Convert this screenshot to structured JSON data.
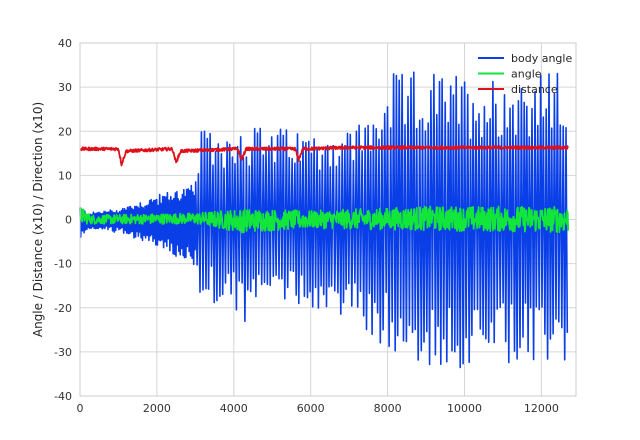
{
  "chart_data": {
    "type": "line",
    "title": "",
    "xlabel": "",
    "ylabel": "Angle / Distance (x10) / Direction (x10)",
    "xlim": [
      0,
      12900
    ],
    "ylim": [
      -40,
      40
    ],
    "x_ticks": [
      0,
      2000,
      4000,
      6000,
      8000,
      10000,
      12000
    ],
    "y_ticks": [
      -40,
      -30,
      -20,
      -10,
      0,
      10,
      20,
      30,
      40
    ],
    "grid": true,
    "legend": "top-right",
    "x_range_data": [
      0,
      12700
    ],
    "series": [
      {
        "name": "body angle",
        "color": "#0a3fe8",
        "style": "oscillation",
        "envelope": [
          {
            "x": 0,
            "lo": -5,
            "hi": 3
          },
          {
            "x": 200,
            "lo": -2,
            "hi": 1.5
          },
          {
            "x": 1000,
            "lo": -3,
            "hi": 2.5
          },
          {
            "x": 1500,
            "lo": -4.5,
            "hi": 4
          },
          {
            "x": 2000,
            "lo": -6,
            "hi": 5.5
          },
          {
            "x": 2500,
            "lo": -9,
            "hi": 7
          },
          {
            "x": 3000,
            "lo": -12,
            "hi": 8
          },
          {
            "x": 3100,
            "lo": -18,
            "hi": 20
          },
          {
            "x": 4000,
            "lo": -20,
            "hi": 21
          },
          {
            "x": 4200,
            "lo": -26,
            "hi": 22
          },
          {
            "x": 5000,
            "lo": -18,
            "hi": 21
          },
          {
            "x": 6000,
            "lo": -20,
            "hi": 20
          },
          {
            "x": 7000,
            "lo": -23,
            "hi": 21
          },
          {
            "x": 7700,
            "lo": -28,
            "hi": 25
          },
          {
            "x": 8000,
            "lo": -30,
            "hi": 33
          },
          {
            "x": 9000,
            "lo": -34,
            "hi": 34
          },
          {
            "x": 10000,
            "lo": -34,
            "hi": 33
          },
          {
            "x": 11000,
            "lo": -34,
            "hi": 33
          },
          {
            "x": 12000,
            "lo": -34,
            "hi": 34
          },
          {
            "x": 12700,
            "lo": -34,
            "hi": 33
          }
        ]
      },
      {
        "name": "angle",
        "color": "#12e63a",
        "style": "noise",
        "center": 0,
        "envelope": [
          {
            "x": 0,
            "lo": -1,
            "hi": 3
          },
          {
            "x": 300,
            "lo": -1,
            "hi": 1
          },
          {
            "x": 3000,
            "lo": -1,
            "hi": 1.5
          },
          {
            "x": 4200,
            "lo": -3,
            "hi": 2.5
          },
          {
            "x": 6000,
            "lo": -2,
            "hi": 2
          },
          {
            "x": 9000,
            "lo": -2.5,
            "hi": 3
          },
          {
            "x": 12700,
            "lo": -3,
            "hi": 3
          }
        ]
      },
      {
        "name": "distance",
        "color": "#e0101a",
        "style": "flat",
        "points": [
          {
            "x": 0,
            "y": 16
          },
          {
            "x": 1000,
            "y": 16
          },
          {
            "x": 1080,
            "y": 12.5
          },
          {
            "x": 1200,
            "y": 15.5
          },
          {
            "x": 2400,
            "y": 16
          },
          {
            "x": 2500,
            "y": 13
          },
          {
            "x": 2620,
            "y": 15.5
          },
          {
            "x": 4100,
            "y": 16
          },
          {
            "x": 4200,
            "y": 13.5
          },
          {
            "x": 4320,
            "y": 16
          },
          {
            "x": 5600,
            "y": 16
          },
          {
            "x": 5680,
            "y": 13.5
          },
          {
            "x": 5800,
            "y": 16
          },
          {
            "x": 7000,
            "y": 16.3
          },
          {
            "x": 12700,
            "y": 16.3
          }
        ]
      }
    ]
  }
}
